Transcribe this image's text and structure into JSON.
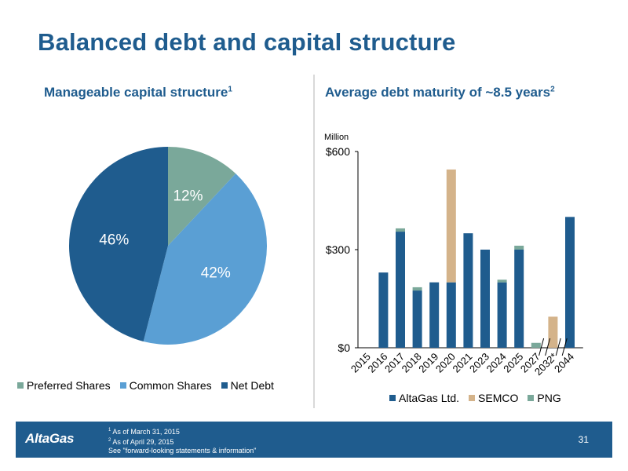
{
  "slide": {
    "title": "Balanced debt and capital structure",
    "page_number": "31"
  },
  "left_panel": {
    "subtitle": "Manageable capital structure",
    "subtitle_note": "1"
  },
  "right_panel": {
    "subtitle": "Average debt maturity of ~8.5 years",
    "subtitle_note": "2"
  },
  "footer": {
    "logo_text": "AltaGas",
    "footnotes": [
      {
        "mark": "1",
        "text": "As of March 31, 2015"
      },
      {
        "mark": "2",
        "text": "As of April 29, 2015"
      },
      {
        "mark": "",
        "text": "See \"forward-looking statements & information\""
      }
    ]
  },
  "colors": {
    "altagas": "#1f5c8e",
    "net_debt": "#1f5c8e",
    "common_shares": "#5a9fd4",
    "semco": "#d4b38a",
    "png": "#7aa89a",
    "preferred_shares": "#7aa89a"
  },
  "chart_data": [
    {
      "type": "pie",
      "labels": [
        "Preferred Shares",
        "Common Shares",
        "Net Debt"
      ],
      "values": [
        12,
        42,
        46
      ],
      "data_labels": [
        "12%",
        "42%",
        "46%"
      ],
      "colors": [
        "#7aa89a",
        "#5a9fd4",
        "#1f5c8e"
      ],
      "legend_position": "bottom"
    },
    {
      "type": "bar",
      "stacked": true,
      "unit_label": "Million",
      "categories": [
        "2015",
        "2016",
        "2017",
        "2018",
        "2019",
        "2020",
        "2021",
        "2023",
        "2024",
        "2025",
        "2027",
        "2032*",
        "2044"
      ],
      "axis_breaks_after": [
        "2027",
        "2032*"
      ],
      "series": [
        {
          "name": "AltaGas Ltd.",
          "color": "#1f5c8e",
          "values": [
            0,
            230,
            355,
            175,
            200,
            200,
            350,
            300,
            200,
            300,
            0,
            0,
            400
          ]
        },
        {
          "name": "SEMCO",
          "color": "#d4b38a",
          "values": [
            0,
            0,
            0,
            0,
            0,
            345,
            0,
            0,
            0,
            0,
            0,
            95,
            0
          ]
        },
        {
          "name": "PNG",
          "color": "#7aa89a",
          "values": [
            0,
            0,
            10,
            10,
            0,
            0,
            0,
            0,
            8,
            12,
            15,
            0,
            0
          ]
        }
      ],
      "yticks": [
        "$0",
        "$300",
        "$600"
      ],
      "ylim": [
        0,
        600
      ],
      "grid": false,
      "legend_position": "bottom"
    }
  ]
}
